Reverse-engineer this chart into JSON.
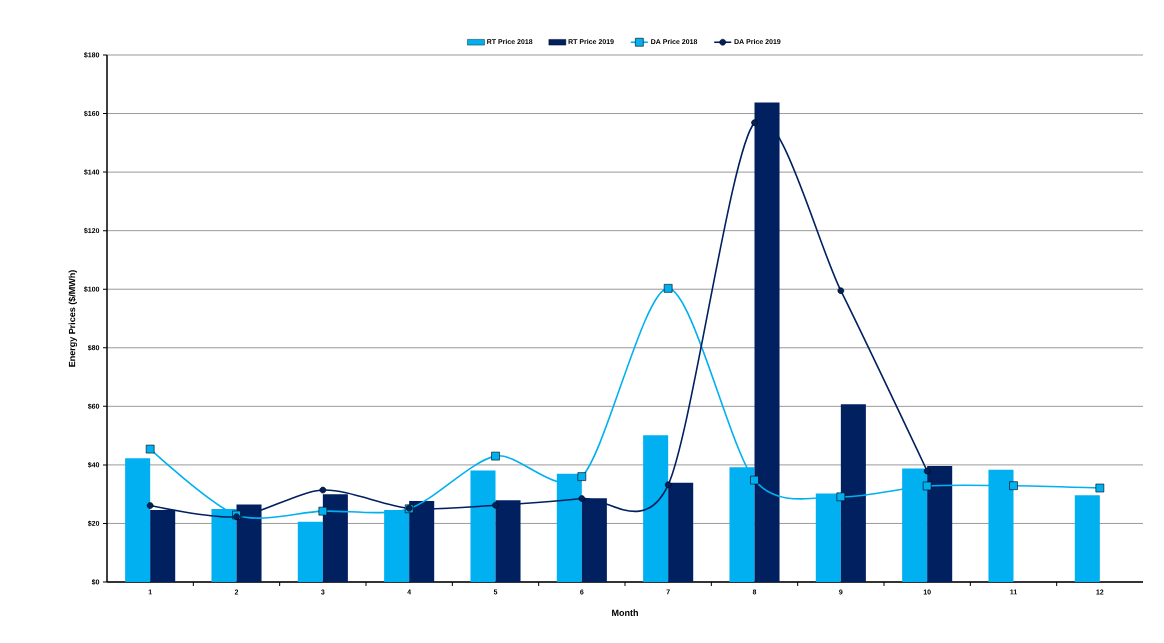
{
  "chart_data": {
    "type": "bar",
    "xlabel": "Month",
    "ylabel": "Energy Prices ($/MWh)",
    "categories": [
      "1",
      "2",
      "3",
      "4",
      "5",
      "6",
      "7",
      "8",
      "9",
      "10",
      "11",
      "12"
    ],
    "series": [
      {
        "name": "RT Price 2018",
        "color": "#00b0f0",
        "values": [
          42.3,
          24.9,
          20.6,
          24.6,
          38.1,
          37.0,
          50.1,
          39.2,
          30.2,
          38.8,
          38.3,
          29.6
        ]
      },
      {
        "name": "RT Price 2019",
        "color": "#002060",
        "values": [
          24.6,
          26.5,
          30.0,
          27.7,
          27.9,
          28.6,
          33.9,
          163.8,
          60.7,
          39.6,
          null,
          null
        ]
      },
      {
        "name": "DA Price 2018",
        "type": "line",
        "color": "#00b0f0",
        "marker": "square",
        "values": [
          45.4,
          22.9,
          24.2,
          25.0,
          43.0,
          36.0,
          100.3,
          34.8,
          29.1,
          32.8,
          32.9,
          32.1
        ]
      },
      {
        "name": "DA Price 2019",
        "type": "line",
        "color": "#002060",
        "marker": "circle",
        "values": [
          26.1,
          22.3,
          31.4,
          25.2,
          26.2,
          28.5,
          33.2,
          156.9,
          99.5,
          37.9,
          null,
          null
        ]
      }
    ],
    "ylim": [
      0,
      180
    ],
    "yticks": [
      {
        "value": 0,
        "label": "$0"
      },
      {
        "value": 20,
        "label": "$20"
      },
      {
        "value": 40,
        "label": "$40"
      },
      {
        "value": 60,
        "label": "$60"
      },
      {
        "value": 80,
        "label": "$80"
      },
      {
        "value": 100,
        "label": "$100"
      },
      {
        "value": 120,
        "label": "$120"
      },
      {
        "value": 140,
        "label": "$140"
      },
      {
        "value": 160,
        "label": "$160"
      },
      {
        "value": 180,
        "label": "$180"
      }
    ],
    "grid": "y",
    "legend": "top"
  }
}
